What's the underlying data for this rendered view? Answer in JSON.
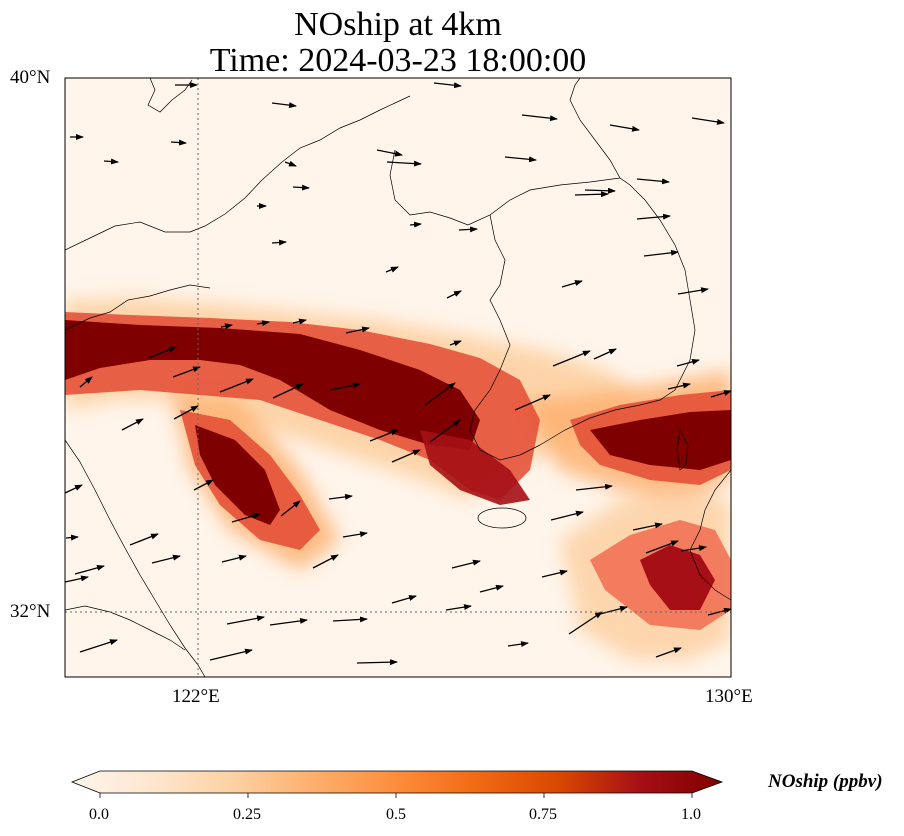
{
  "title_line1": "NOship at 4km",
  "title_line2": "Time: 2024-03-23 18:00:00",
  "lat_ticks": [
    "40°N",
    "32°N"
  ],
  "lon_ticks": [
    "122°E",
    "130°E"
  ],
  "colorbar": {
    "label": "NOship (ppbv)",
    "ticks": [
      "0.0",
      "0.25",
      "0.5",
      "0.75",
      "1.0"
    ],
    "tick_values": [
      0.0,
      0.25,
      0.5,
      0.75,
      1.0
    ],
    "min": 0.0,
    "max": 1.0,
    "colors": [
      "#fff5eb",
      "#fee6ce",
      "#fdd0a2",
      "#fdae6b",
      "#fd8d3c",
      "#f16913",
      "#d94801",
      "#a50f15",
      "#7f0000"
    ]
  },
  "map_extent": {
    "lon_min": 120,
    "lon_max": 130,
    "lat_min": 31,
    "lat_max": 40
  },
  "gridlines": {
    "lon": [
      122,
      130
    ],
    "lat": [
      32,
      40
    ]
  },
  "chart_data": {
    "type": "heatmap",
    "variable": "NOship",
    "units": "ppbv",
    "level": "4km",
    "time": "2024-03-23 18:00:00",
    "plumes": [
      {
        "name": "northern-band",
        "lon": [
          120.0,
          121.0,
          122.0,
          123.0,
          124.0,
          125.0,
          125.8,
          126.6,
          127.3
        ],
        "lat": [
          35.8,
          35.8,
          35.6,
          35.3,
          35.0,
          34.8,
          34.3,
          33.8,
          33.4
        ],
        "value": 1.0
      },
      {
        "name": "southwest-branch",
        "lon": [
          122.0,
          122.6,
          123.1,
          123.5
        ],
        "lat": [
          34.5,
          33.9,
          33.4,
          33.0
        ],
        "value": 1.0
      },
      {
        "name": "korea-strait",
        "lon": [
          127.8,
          128.5,
          129.2,
          130.0
        ],
        "lat": [
          34.4,
          34.2,
          34.2,
          34.4
        ],
        "value": 1.0
      },
      {
        "name": "south-east",
        "lon": [
          129.0,
          129.5
        ],
        "lat": [
          32.4,
          31.9
        ],
        "value": 0.85
      }
    ],
    "wind_vectors_shown": true
  }
}
